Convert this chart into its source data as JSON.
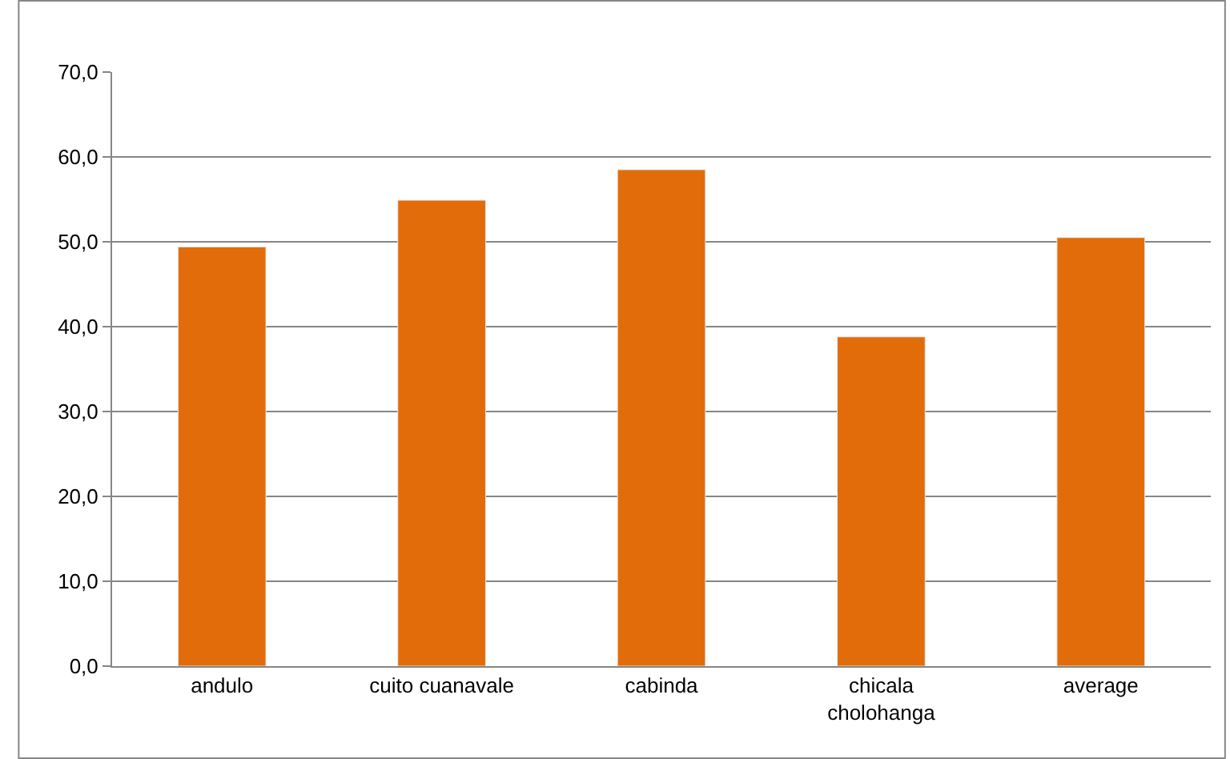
{
  "chart_data": {
    "type": "bar",
    "categories": [
      "andulo",
      "cuito cuanavale",
      "cabinda",
      "chicala\ncholohanga",
      "average"
    ],
    "values": [
      49.4,
      54.9,
      58.5,
      38.8,
      50.5
    ],
    "color": "#e36c0a",
    "ylim": [
      0,
      70
    ],
    "yticks": [
      {
        "value": 0,
        "label": "0,0"
      },
      {
        "value": 10,
        "label": "10,0"
      },
      {
        "value": 20,
        "label": "20,0"
      },
      {
        "value": 30,
        "label": "30,0"
      },
      {
        "value": 40,
        "label": "40,0"
      },
      {
        "value": 50,
        "label": "50,0"
      },
      {
        "value": 60,
        "label": "60,0"
      },
      {
        "value": 70,
        "label": "70,0"
      }
    ],
    "grid": "y",
    "legend": false
  }
}
